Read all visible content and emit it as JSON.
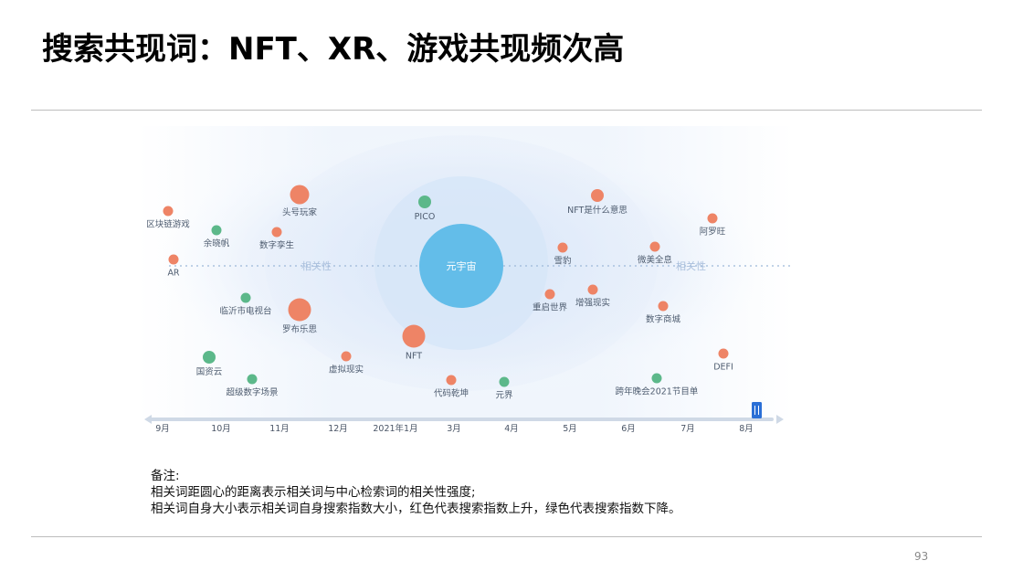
{
  "title": "搜索共现词：NFT、XR、游戏共现频次高",
  "notes": {
    "heading": "备注:",
    "lines": [
      "相关词距圆心的距离表示相关词与中心检索词的相关性强度;",
      "相关词自身大小表示相关词自身搜索指数大小，红色代表搜索指数上升，绿色代表搜索指数下降。"
    ]
  },
  "page_number": "93",
  "colors": {
    "rising": "#ee8466",
    "falling": "#5cb88a",
    "center": "#63bde9",
    "axis_handle": "#2a6fd6"
  },
  "chart_data": {
    "type": "scatter",
    "center": {
      "label": "元宇宙"
    },
    "relevance_labels": [
      "相关性",
      "相关性"
    ],
    "timeline": [
      "9月",
      "10月",
      "11月",
      "12月",
      "2021年1月",
      "3月",
      "4月",
      "5月",
      "6月",
      "7月",
      "8月"
    ],
    "legend": {
      "rising": "红色代表搜索指数上升",
      "falling": "绿色代表搜索指数下降"
    },
    "terms": [
      {
        "label": "区块链游戏",
        "trend": "up",
        "size": 1
      },
      {
        "label": "AR",
        "trend": "up",
        "size": 1
      },
      {
        "label": "余晓帆",
        "trend": "down",
        "size": 1
      },
      {
        "label": "头号玩家",
        "trend": "up",
        "size": 3
      },
      {
        "label": "数字孪生",
        "trend": "up",
        "size": 1
      },
      {
        "label": "临沂市电视台",
        "trend": "down",
        "size": 1
      },
      {
        "label": "罗布乐思",
        "trend": "up",
        "size": 4
      },
      {
        "label": "国资云",
        "trend": "down",
        "size": 2
      },
      {
        "label": "超级数字场景",
        "trend": "down",
        "size": 1
      },
      {
        "label": "虚拟现实",
        "trend": "up",
        "size": 1
      },
      {
        "label": "PICO",
        "trend": "down",
        "size": 2
      },
      {
        "label": "NFT",
        "trend": "up",
        "size": 4
      },
      {
        "label": "代码乾坤",
        "trend": "up",
        "size": 1
      },
      {
        "label": "元界",
        "trend": "down",
        "size": 1
      },
      {
        "label": "雪豹",
        "trend": "up",
        "size": 1
      },
      {
        "label": "重启世界",
        "trend": "up",
        "size": 1
      },
      {
        "label": "增强现实",
        "trend": "up",
        "size": 1
      },
      {
        "label": "NFT是什么意思",
        "trend": "up",
        "size": 2
      },
      {
        "label": "微美全息",
        "trend": "up",
        "size": 1
      },
      {
        "label": "阿罗旺",
        "trend": "up",
        "size": 1
      },
      {
        "label": "数字商城",
        "trend": "up",
        "size": 1
      },
      {
        "label": "DEFI",
        "trend": "up",
        "size": 1
      },
      {
        "label": "跨年晚会2021节目单",
        "trend": "down",
        "size": 1
      }
    ]
  }
}
